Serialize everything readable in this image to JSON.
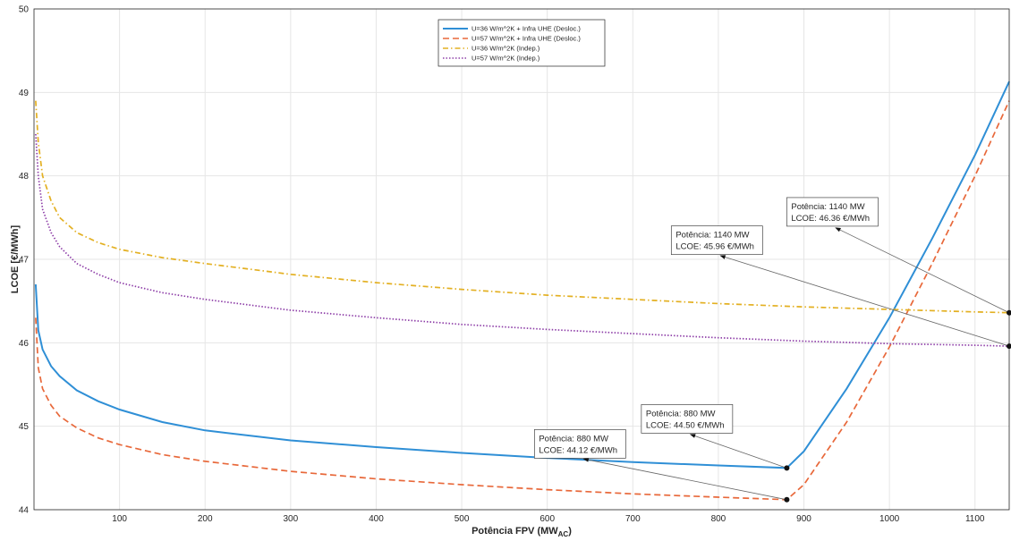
{
  "chart_data": {
    "type": "line",
    "title": "",
    "xlabel": "Potência FPV (MW",
    "xlabel_sub": "AC",
    "xlabel_close": ")",
    "ylabel": "LCOE [€/MWh]",
    "xlim": [
      0,
      1140
    ],
    "ylim": [
      44,
      50
    ],
    "xticks": [
      100,
      200,
      300,
      400,
      500,
      600,
      700,
      800,
      900,
      1000,
      1100
    ],
    "yticks": [
      44,
      45,
      46,
      47,
      48,
      49,
      50
    ],
    "grid": true,
    "legend_position": "top-center",
    "series": [
      {
        "name": "U=36 W/m^2K + Infra UHE (Desloc.)",
        "style": "solid",
        "color": "#2f8fd6",
        "x": [
          2,
          5,
          10,
          20,
          30,
          50,
          75,
          100,
          150,
          200,
          300,
          400,
          500,
          600,
          700,
          800,
          880,
          900,
          950,
          1000,
          1050,
          1100,
          1140
        ],
        "y": [
          46.7,
          46.15,
          45.92,
          45.72,
          45.6,
          45.43,
          45.3,
          45.2,
          45.05,
          44.95,
          44.83,
          44.75,
          44.68,
          44.62,
          44.57,
          44.53,
          44.5,
          44.7,
          45.45,
          46.3,
          47.25,
          48.25,
          49.13
        ]
      },
      {
        "name": "U=57 W/m^2K + Infra UHE (Desloc.)",
        "style": "dashed",
        "color": "#e8683a",
        "x": [
          2,
          5,
          10,
          20,
          30,
          50,
          75,
          100,
          150,
          200,
          300,
          400,
          500,
          600,
          700,
          800,
          880,
          900,
          950,
          1000,
          1050,
          1100,
          1140
        ],
        "y": [
          46.3,
          45.7,
          45.45,
          45.25,
          45.12,
          44.98,
          44.86,
          44.78,
          44.66,
          44.58,
          44.46,
          44.37,
          44.3,
          44.24,
          44.19,
          44.15,
          44.12,
          44.3,
          45.05,
          45.95,
          46.95,
          48.0,
          48.9
        ]
      },
      {
        "name": "U=36 W/m^2K (Indep.)",
        "style": "dashdot",
        "color": "#e3b022",
        "x": [
          2,
          5,
          10,
          20,
          30,
          50,
          75,
          100,
          150,
          200,
          300,
          400,
          500,
          600,
          700,
          800,
          900,
          1000,
          1100,
          1140
        ],
        "y": [
          48.9,
          48.4,
          48.0,
          47.7,
          47.5,
          47.32,
          47.2,
          47.12,
          47.02,
          46.95,
          46.82,
          46.72,
          46.64,
          46.57,
          46.52,
          46.47,
          46.43,
          46.4,
          46.37,
          46.36
        ]
      },
      {
        "name": "U=57 W/m^2K (Indep.)",
        "style": "dotted",
        "color": "#8e3fa8",
        "x": [
          2,
          5,
          10,
          20,
          30,
          50,
          75,
          100,
          150,
          200,
          300,
          400,
          500,
          600,
          700,
          800,
          900,
          1000,
          1100,
          1140
        ],
        "y": [
          48.5,
          48.0,
          47.6,
          47.32,
          47.15,
          46.95,
          46.82,
          46.72,
          46.6,
          46.52,
          46.39,
          46.3,
          46.22,
          46.16,
          46.11,
          46.06,
          46.02,
          45.99,
          45.97,
          45.96
        ]
      }
    ],
    "annotations": [
      {
        "line1": "Potência: 880 MW",
        "line2": "LCOE: 44.12 €/MWh",
        "point": [
          880,
          44.12
        ],
        "box": [
          585,
          44.96
        ]
      },
      {
        "line1": "Potência: 880 MW",
        "line2": "LCOE: 44.50 €/MWh",
        "point": [
          880,
          44.5
        ],
        "box": [
          710,
          45.26
        ]
      },
      {
        "line1": "Potência: 1140 MW",
        "line2": "LCOE: 45.96 €/MWh",
        "point": [
          1140,
          45.96
        ],
        "box": [
          745,
          47.4
        ]
      },
      {
        "line1": "Potência: 1140 MW",
        "line2": "LCOE: 46.36 €/MWh",
        "point": [
          1140,
          46.36
        ],
        "box": [
          880,
          47.74
        ]
      }
    ]
  }
}
